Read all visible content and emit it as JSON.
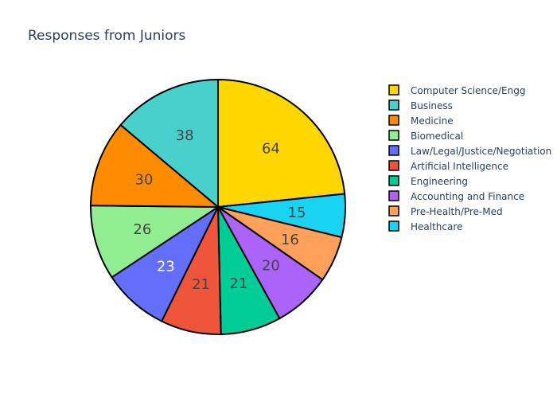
{
  "chart_data": {
    "type": "pie",
    "title": "Responses from Juniors",
    "legend_position": "right",
    "sort": "descending",
    "direction": "clockwise",
    "start_angle_deg": 0,
    "slice_border_color": "#000000",
    "slices": [
      {
        "label": "Computer Science/Engg",
        "value": 64,
        "color": "#FFD700",
        "text_color": "#444444"
      },
      {
        "label": "Healthcare",
        "value": 15,
        "color": "#19D3F3",
        "text_color": "#444444"
      },
      {
        "label": "Pre-Health/Pre-Med",
        "value": 16,
        "color": "#FFA15A",
        "text_color": "#444444"
      },
      {
        "label": "Accounting and Finance",
        "value": 20,
        "color": "#AB63FA",
        "text_color": "#444444"
      },
      {
        "label": "Engineering",
        "value": 21,
        "color": "#00CC96",
        "text_color": "#444444"
      },
      {
        "label": "Artificial Intelligence",
        "value": 21,
        "color": "#EF553B",
        "text_color": "#444444"
      },
      {
        "label": "Law/Legal/Justice/Negotiation",
        "value": 23,
        "color": "#636EFA",
        "text_color": "#ffffff"
      },
      {
        "label": "Biomedical",
        "value": 26,
        "color": "#90EE90",
        "text_color": "#444444"
      },
      {
        "label": "Medicine",
        "value": 30,
        "color": "#FF8C00",
        "text_color": "#444444"
      },
      {
        "label": "Business",
        "value": 38,
        "color": "#48D1CC",
        "text_color": "#444444"
      }
    ],
    "legend_order": [
      "Computer Science/Engg",
      "Business",
      "Medicine",
      "Biomedical",
      "Law/Legal/Justice/Negotiation",
      "Artificial Intelligence",
      "Engineering",
      "Accounting and Finance",
      "Pre-Health/Pre-Med",
      "Healthcare"
    ]
  }
}
